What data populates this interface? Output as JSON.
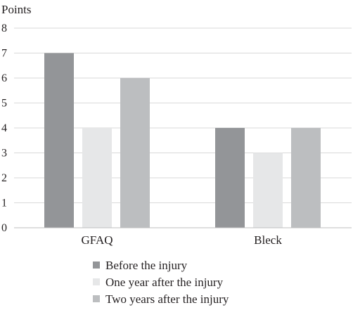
{
  "chart_data": {
    "type": "bar",
    "title": "",
    "xlabel": "",
    "ylabel": "Points",
    "ylim": [
      0,
      8
    ],
    "yticks": [
      0,
      1,
      2,
      3,
      4,
      5,
      6,
      7,
      8
    ],
    "grid": true,
    "legend_position": "bottom",
    "categories": [
      "GFAQ",
      "Bleck"
    ],
    "series": [
      {
        "name": "Before the injury",
        "values": [
          7,
          4
        ],
        "color": "#939598"
      },
      {
        "name": "One year after the injury",
        "values": [
          4,
          3
        ],
        "color": "#e6e7e8"
      },
      {
        "name": "Two years after the injury",
        "values": [
          6,
          4
        ],
        "color": "#bcbec0"
      }
    ]
  }
}
